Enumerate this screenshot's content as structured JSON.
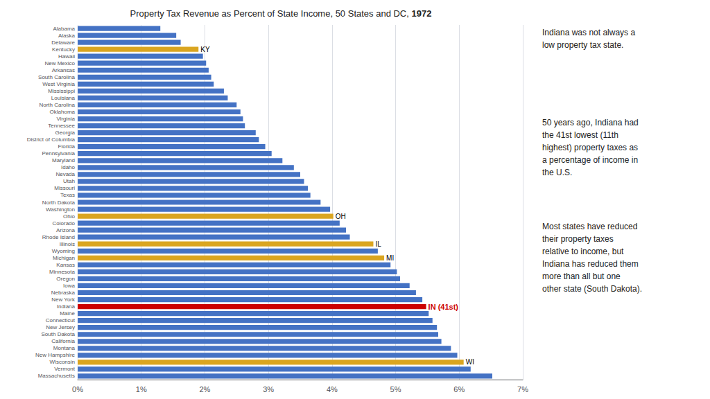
{
  "chart_data": {
    "type": "bar",
    "orientation": "horizontal",
    "title": "Property Tax Revenue as Percent of State Income, 50 States and DC, 1972",
    "categories": [
      "Alabama",
      "Alaska",
      "Delaware",
      "Kentucky",
      "Hawaii",
      "New Mexico",
      "Arkansas",
      "South Carolina",
      "West Virginia",
      "Mississippi",
      "Louisiana",
      "North Carolina",
      "Oklahoma",
      "Virginia",
      "Tennessee",
      "Georgia",
      "District of Columbia",
      "Florida",
      "Pennsylvania",
      "Maryland",
      "Idaho",
      "Nevada",
      "Utah",
      "Missouri",
      "Texas",
      "North Dakota",
      "Washington",
      "Ohio",
      "Colorado",
      "Arizona",
      "Rhode Island",
      "Illinois",
      "Wyoming",
      "Michigan",
      "Kansas",
      "Minnesota",
      "Oregon",
      "Iowa",
      "Nebraska",
      "New York",
      "Indiana",
      "Maine",
      "Connecticut",
      "New Jersey",
      "South Dakota",
      "California",
      "Montana",
      "New Hampshire",
      "Wisconsin",
      "Vermont",
      "Massachusetts"
    ],
    "values": [
      1.3,
      1.55,
      1.62,
      1.9,
      1.97,
      2.02,
      2.06,
      2.1,
      2.14,
      2.3,
      2.36,
      2.5,
      2.56,
      2.6,
      2.63,
      2.8,
      2.85,
      2.95,
      3.05,
      3.22,
      3.4,
      3.5,
      3.56,
      3.62,
      3.66,
      3.82,
      3.97,
      4.02,
      4.12,
      4.22,
      4.28,
      4.65,
      4.72,
      4.82,
      4.92,
      5.02,
      5.07,
      5.22,
      5.32,
      5.42,
      5.48,
      5.52,
      5.58,
      5.65,
      5.67,
      5.72,
      5.87,
      5.97,
      6.07,
      6.18,
      6.52
    ],
    "colors": [
      "#4472C4",
      "#4472C4",
      "#4472C4",
      "#DAA520",
      "#4472C4",
      "#4472C4",
      "#4472C4",
      "#4472C4",
      "#4472C4",
      "#4472C4",
      "#4472C4",
      "#4472C4",
      "#4472C4",
      "#4472C4",
      "#4472C4",
      "#4472C4",
      "#4472C4",
      "#4472C4",
      "#4472C4",
      "#4472C4",
      "#4472C4",
      "#4472C4",
      "#4472C4",
      "#4472C4",
      "#4472C4",
      "#4472C4",
      "#4472C4",
      "#DAA520",
      "#4472C4",
      "#4472C4",
      "#4472C4",
      "#DAA520",
      "#4472C4",
      "#DAA520",
      "#4472C4",
      "#4472C4",
      "#4472C4",
      "#4472C4",
      "#4472C4",
      "#4472C4",
      "#CC0000",
      "#4472C4",
      "#4472C4",
      "#4472C4",
      "#4472C4",
      "#4472C4",
      "#4472C4",
      "#4472C4",
      "#DAA520",
      "#4472C4",
      "#4472C4"
    ],
    "xlim": [
      0,
      7.0
    ],
    "xticks": [
      {
        "value": 0,
        "label": "0%"
      },
      {
        "value": 1,
        "label": "1%"
      },
      {
        "value": 2,
        "label": "2%"
      },
      {
        "value": 3,
        "label": "3%"
      },
      {
        "value": 4,
        "label": "4%"
      },
      {
        "value": 5,
        "label": "5%"
      },
      {
        "value": 6,
        "label": "6%"
      },
      {
        "value": 7,
        "label": "7%"
      }
    ],
    "grid": true,
    "annotations": [
      {
        "category": "Kentucky",
        "text": "KY",
        "color": "#000000"
      },
      {
        "category": "Ohio",
        "text": "OH",
        "color": "#000000"
      },
      {
        "category": "Illinois",
        "text": "IL",
        "color": "#000000"
      },
      {
        "category": "Michigan",
        "text": "MI",
        "color": "#000000"
      },
      {
        "category": "Wisconsin",
        "text": "WI",
        "color": "#000000"
      },
      {
        "category": "Indiana",
        "text": "IN (41st)",
        "color": "#CC0000"
      },
      {
        "text": "Indiana was not always a\nlow property tax state."
      },
      {
        "text": "50 years ago, Indiana had\nthe 41st lowest (11th\nhighest) property taxes as\na percentage of income in\nthe U.S."
      },
      {
        "text": "Most states have reduced\ntheir property taxes\nrelative to income, but\nIndiana has reduced them\nmore than all but one\nother state (South Dakota)."
      }
    ]
  }
}
